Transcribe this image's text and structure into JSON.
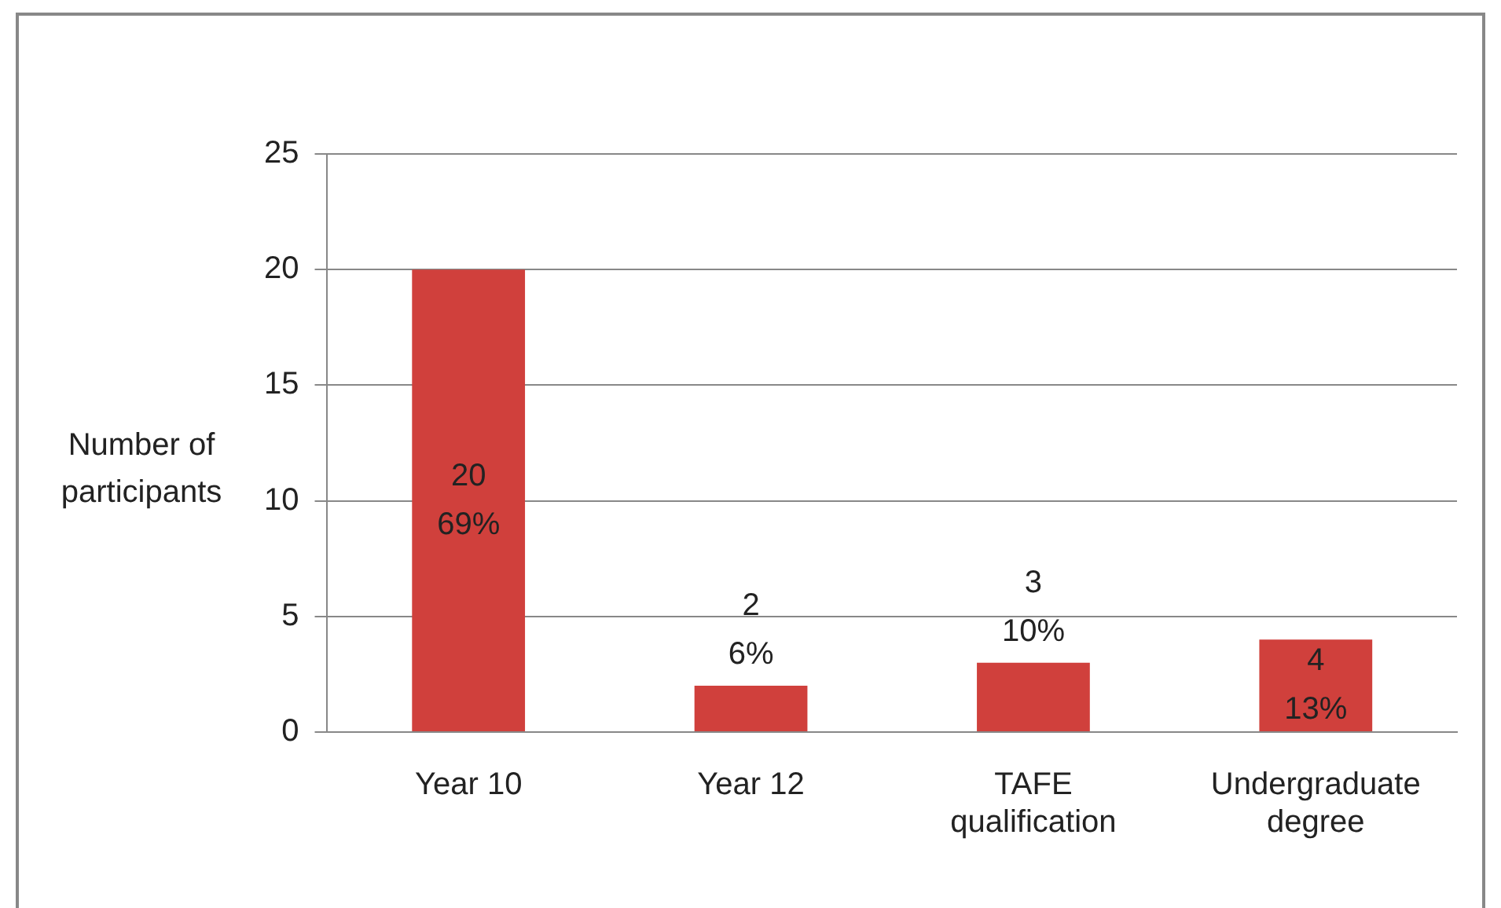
{
  "chart_data": {
    "type": "bar",
    "ylabel": "Number of participants",
    "categories": [
      "Year 10",
      "Year 12",
      "TAFE qualification",
      "Undergraduate degree"
    ],
    "values": [
      20,
      2,
      3,
      4
    ],
    "value_labels": [
      "20\n69%",
      "2\n6%",
      "3\n10%",
      "4\n13%"
    ],
    "color": "#d0403c",
    "ylim": [
      0,
      25
    ],
    "yticks": [
      0,
      5,
      10,
      15,
      20,
      25
    ],
    "grid": "y",
    "legend": false
  }
}
